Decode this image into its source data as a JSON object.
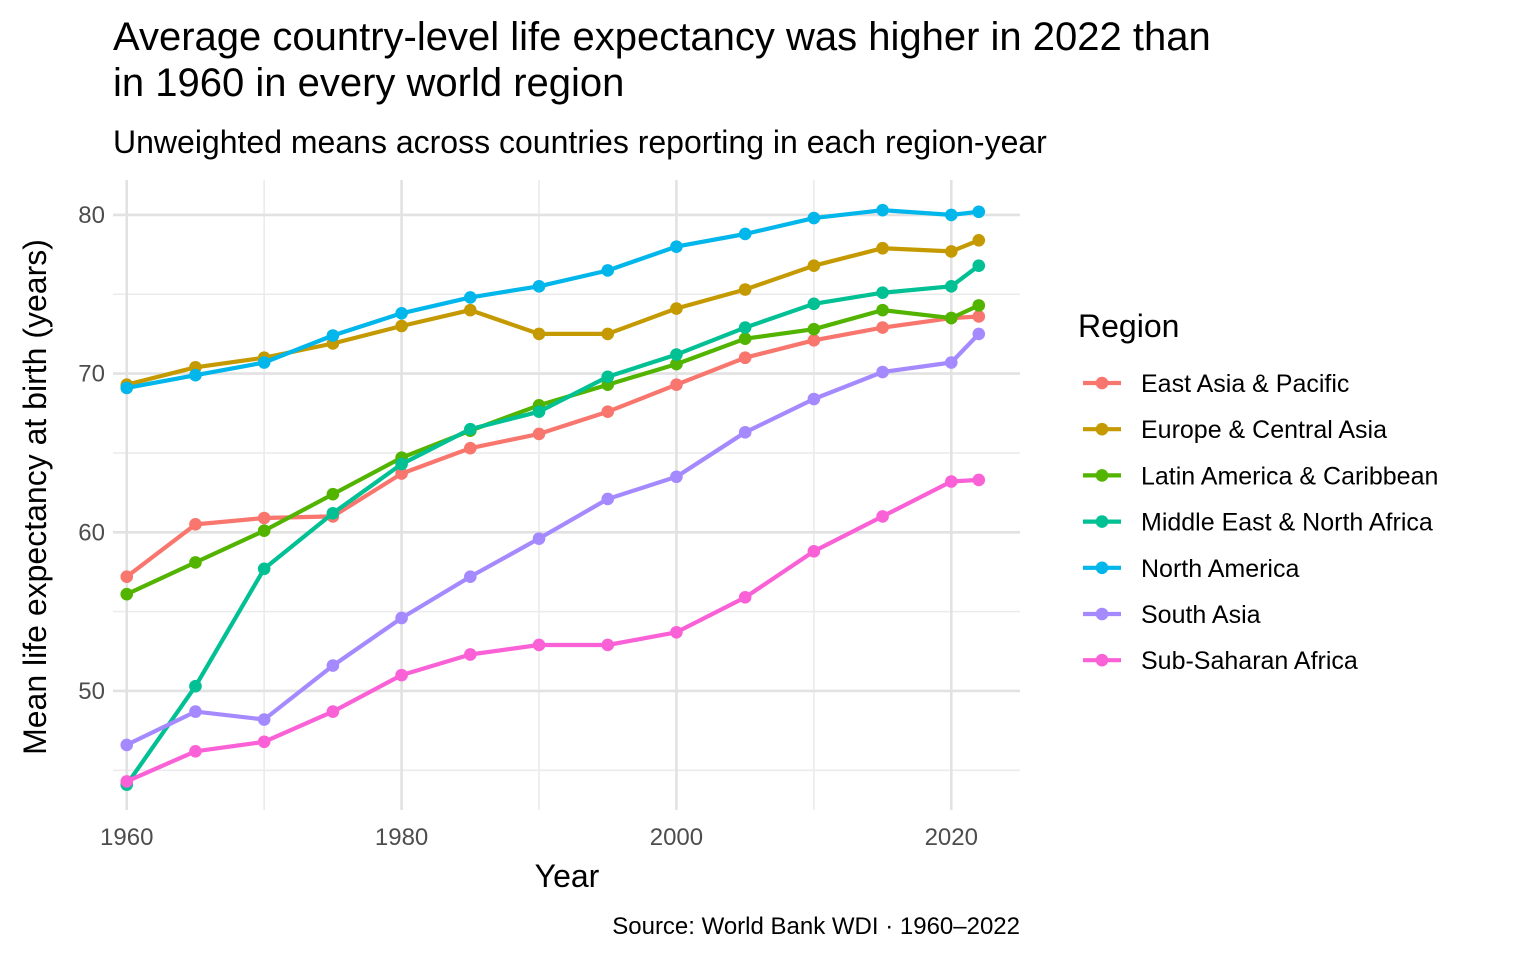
{
  "chart_data": {
    "type": "line",
    "title_lines": [
      "Average country-level life expectancy was higher in 2022 than",
      "in 1960 in every world region"
    ],
    "subtitle": "Unweighted means across countries reporting in each region-year",
    "xlabel": "Year",
    "ylabel": "Mean life expectancy at birth (years)",
    "caption": "Source: World Bank WDI · 1960–2022",
    "legend_title": "Region",
    "legend_position": "right",
    "grid": true,
    "xlim": [
      1959,
      2025
    ],
    "ylim": [
      42.5,
      82.2
    ],
    "x_ticks": [
      1960,
      1980,
      2000,
      2020
    ],
    "y_ticks": [
      50,
      60,
      70,
      80
    ],
    "x": [
      1960,
      1965,
      1970,
      1975,
      1980,
      1985,
      1990,
      1995,
      2000,
      2005,
      2010,
      2015,
      2020,
      2022
    ],
    "series": [
      {
        "name": "East Asia & Pacific",
        "color": "#F8766D",
        "values": [
          57.2,
          60.5,
          60.9,
          61.0,
          63.7,
          65.3,
          66.2,
          67.6,
          69.3,
          71.0,
          72.1,
          72.9,
          73.5,
          73.6
        ]
      },
      {
        "name": "Europe & Central Asia",
        "color": "#C49A00",
        "values": [
          69.3,
          70.4,
          71.0,
          71.9,
          73.0,
          74.0,
          72.5,
          72.5,
          74.1,
          75.3,
          76.8,
          77.9,
          77.7,
          78.4
        ]
      },
      {
        "name": "Latin America & Caribbean",
        "color": "#53B400",
        "values": [
          56.1,
          58.1,
          60.1,
          62.4,
          64.7,
          66.4,
          68.0,
          69.3,
          70.6,
          72.2,
          72.8,
          74.0,
          73.5,
          74.3
        ]
      },
      {
        "name": "Middle East & North Africa",
        "color": "#00C094",
        "values": [
          44.1,
          50.3,
          57.7,
          61.2,
          64.3,
          66.5,
          67.6,
          69.8,
          71.2,
          72.9,
          74.4,
          75.1,
          75.5,
          76.8
        ]
      },
      {
        "name": "North America",
        "color": "#00B6EB",
        "values": [
          69.1,
          69.9,
          70.7,
          72.4,
          73.8,
          74.8,
          75.5,
          76.5,
          78.0,
          78.8,
          79.8,
          80.3,
          80.0,
          80.2
        ]
      },
      {
        "name": "South Asia",
        "color": "#A58AFF",
        "values": [
          46.6,
          48.7,
          48.2,
          51.6,
          54.6,
          57.2,
          59.6,
          62.1,
          63.5,
          66.3,
          68.4,
          70.1,
          70.7,
          72.5
        ]
      },
      {
        "name": "Sub-Saharan Africa",
        "color": "#FB61D7",
        "values": [
          44.3,
          46.2,
          46.8,
          48.7,
          51.0,
          52.3,
          52.9,
          52.9,
          53.7,
          55.9,
          58.8,
          61.0,
          63.2,
          63.3
        ]
      }
    ]
  }
}
